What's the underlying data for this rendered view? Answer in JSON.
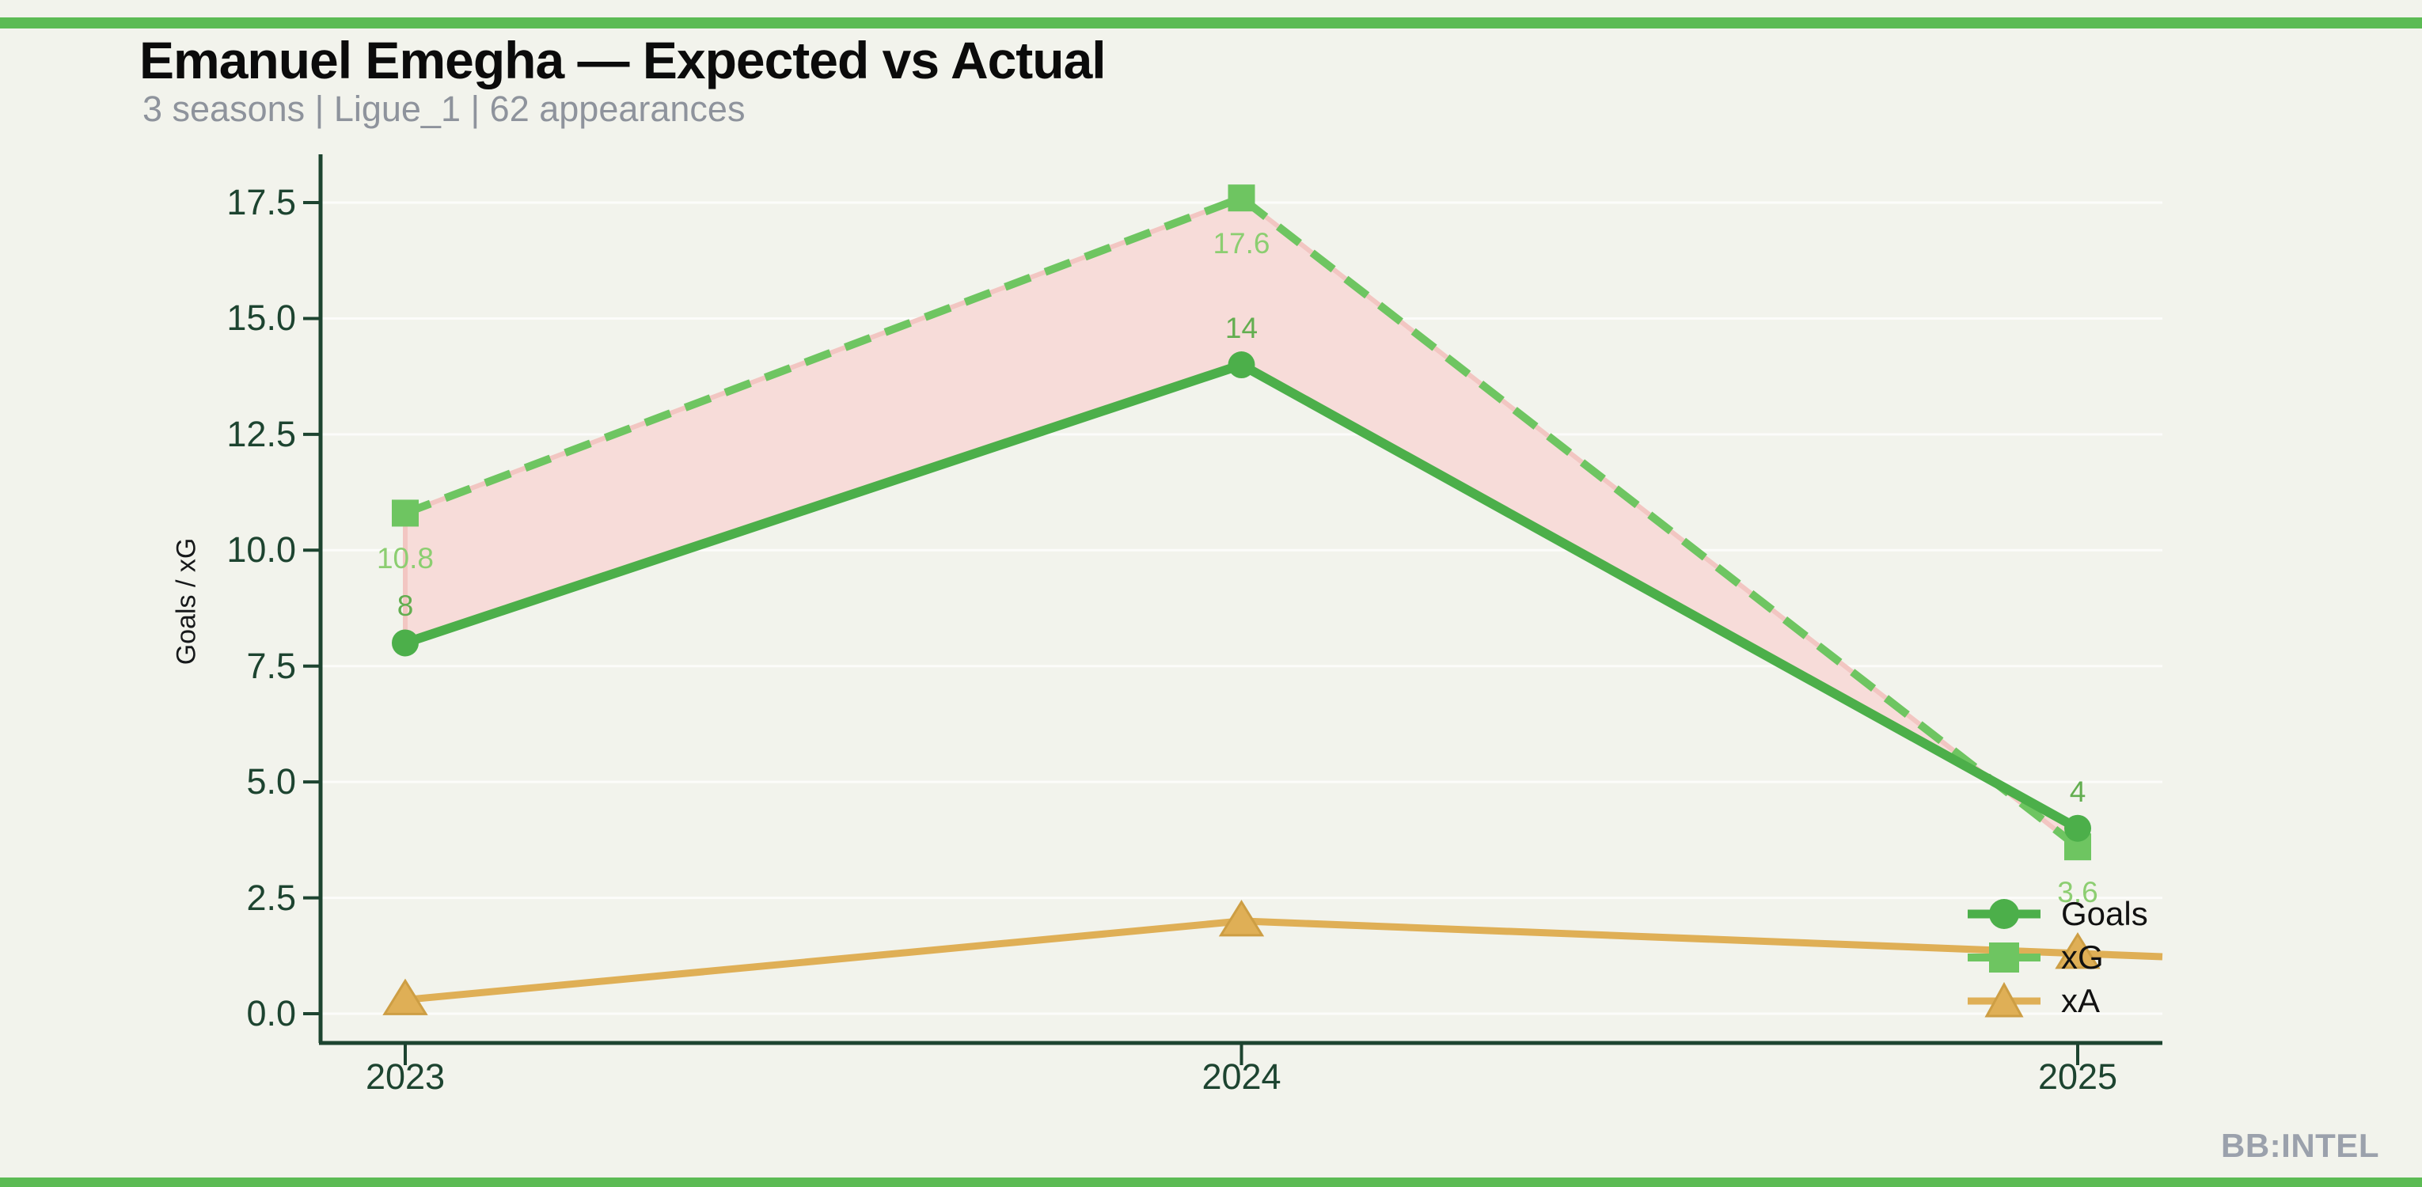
{
  "page": {
    "title": "Emanuel Emegha — Expected vs Actual",
    "subtitle": "3 seasons | Ligue_1 | 62 appearances",
    "watermark": "BB:INTEL"
  },
  "colors": {
    "background": "#F2F3EC",
    "accent_bar_green": "#5CBB54",
    "axis_dark_green": "#1D4430",
    "goals_line": "#4CAF4A",
    "xg_line": "#6EC561",
    "xa_line": "#DFAF56",
    "xa_marker_edge": "#CD9E44",
    "diff_fill_pink": "#F7DCD9",
    "diff_edge_pink": "#F2C6C2",
    "goals_label_text": "#63AE50",
    "xg_label_text": "#8CCE71",
    "subtitle_text": "#8E939C",
    "watermark_text": "#9BA1AC",
    "gridline": "rgba(255,255,255,0.75)"
  },
  "chart_data": {
    "type": "line",
    "title": "Emanuel Emegha — Expected vs Actual",
    "categories": [
      "2023",
      "2024",
      "2025"
    ],
    "series": [
      {
        "name": "Goals",
        "values": [
          8,
          14,
          4
        ],
        "line_style": "solid",
        "marker": "circle",
        "point_labels": [
          "8",
          "14",
          "4"
        ],
        "label_position": "above"
      },
      {
        "name": "xG",
        "values": [
          10.8,
          17.6,
          3.6
        ],
        "line_style": "dashed",
        "marker": "square",
        "point_labels": [
          "10.8",
          "17.6",
          "3.6"
        ],
        "label_position": "below"
      },
      {
        "name": "xA",
        "values": [
          0.3,
          2.0,
          1.3
        ],
        "line_style": "solid",
        "marker": "triangle",
        "point_labels": [],
        "label_position": "none"
      }
    ],
    "xlabel": "",
    "ylabel": "Goals / xG",
    "ylim": [
      0,
      17.5
    ],
    "yticks": [
      0.0,
      2.5,
      5.0,
      7.5,
      10.0,
      12.5,
      15.0,
      17.5
    ],
    "ytick_labels": [
      "0.0",
      "2.5",
      "5.0",
      "7.5",
      "10.0",
      "12.5",
      "15.0",
      "17.5"
    ],
    "grid": "horizontal-faint",
    "legend_position": "lower-right",
    "shaded_region": {
      "between": [
        "Goals",
        "xG"
      ],
      "fill": "#F7DCD9"
    }
  },
  "legend": {
    "items": [
      {
        "label": "Goals"
      },
      {
        "label": "xG"
      },
      {
        "label": "xA"
      }
    ]
  }
}
